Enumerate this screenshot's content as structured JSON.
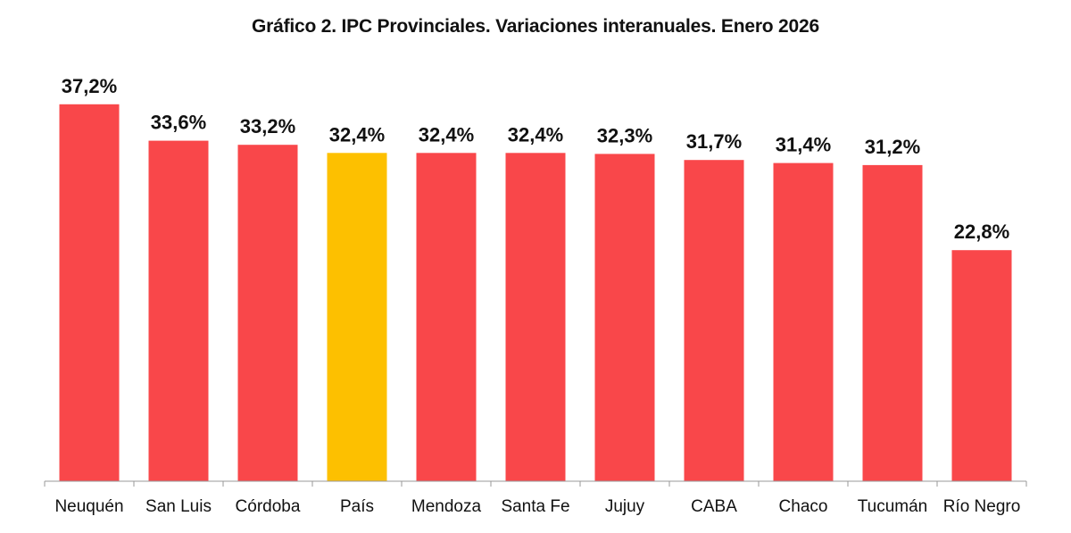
{
  "chart_data": {
    "type": "bar",
    "title": "Gráfico 2. IPC Provinciales. Variaciones interanuales. Enero 2026",
    "xlabel": "",
    "ylabel": "",
    "ylim": [
      0,
      40
    ],
    "categories": [
      "Neuquén",
      "San Luis",
      "Córdoba",
      "País",
      "Mendoza",
      "Santa Fe",
      "Jujuy",
      "CABA",
      "Chaco",
      "Tucumán",
      "Río Negro"
    ],
    "values": [
      37.2,
      33.6,
      33.2,
      32.4,
      32.4,
      32.4,
      32.3,
      31.7,
      31.4,
      31.2,
      22.8
    ],
    "data_labels": [
      "37,2%",
      "33,6%",
      "33,2%",
      "32,4%",
      "32,4%",
      "32,4%",
      "32,3%",
      "31,7%",
      "31,4%",
      "31,2%",
      "22,8%"
    ],
    "highlight_category": "País",
    "colors": {
      "default_bar": "#F9474A",
      "highlight_bar": "#FDC000",
      "axis": "#999999",
      "text": "#111111"
    },
    "grid": false,
    "legend": "none"
  }
}
